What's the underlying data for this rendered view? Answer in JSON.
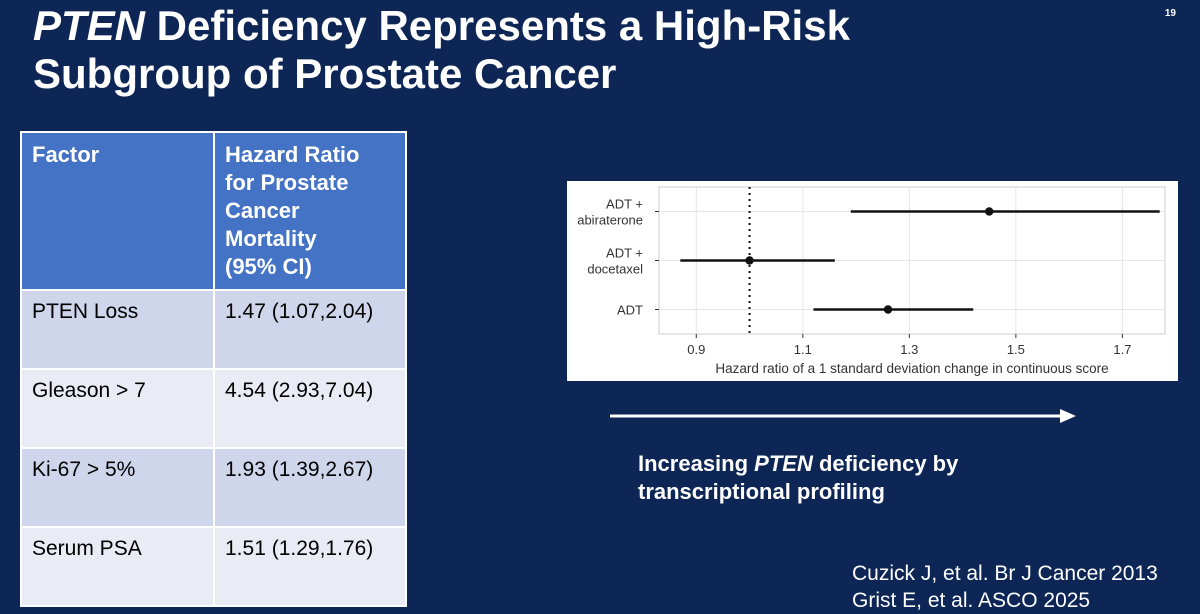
{
  "slide_number": "19",
  "title": {
    "italic": "PTEN",
    "line1_rest": " Deficiency Represents a High-Risk",
    "line2": "Subgroup of Prostate Cancer"
  },
  "table": {
    "headers": [
      "Factor",
      "Hazard Ratio for Prostate Cancer Mortality (95% CI)"
    ],
    "header_lines": [
      "Hazard Ratio",
      "for Prostate",
      "Cancer",
      "Mortality",
      "(95% CI)"
    ],
    "rows": [
      {
        "factor": "PTEN Loss",
        "hr": "1.47 (1.07,2.04)"
      },
      {
        "factor": "Gleason > 7",
        "hr": "4.54 (2.93,7.04)"
      },
      {
        "factor": "Ki-67 > 5%",
        "hr": "1.93 (1.39,2.67)"
      },
      {
        "factor": "Serum PSA",
        "hr": "1.51 (1.29,1.76)"
      }
    ],
    "colors": {
      "header_bg": "#4472c4",
      "row_odd": "#cfd5ea",
      "row_even": "#e9ebf5"
    }
  },
  "chart_data": {
    "type": "scatter",
    "subtype": "forest-plot",
    "xlabel": "Hazard ratio of a 1 standard deviation change in continuous score",
    "xlim": [
      0.83,
      1.78
    ],
    "xticks": [
      0.9,
      1.1,
      1.3,
      1.5,
      1.7
    ],
    "xtick_labels": [
      "0.9",
      "1.1",
      "1.3",
      "1.5",
      "1.7"
    ],
    "reference_line": 1.0,
    "grid": true,
    "categories": [
      {
        "label_lines": [
          "ADT +",
          "abiraterone"
        ],
        "estimate": 1.45,
        "lower": 1.19,
        "upper": 1.77
      },
      {
        "label_lines": [
          "ADT +",
          "docetaxel"
        ],
        "estimate": 1.0,
        "lower": 0.87,
        "upper": 1.16
      },
      {
        "label_lines": [
          "ADT"
        ],
        "estimate": 1.26,
        "lower": 1.12,
        "upper": 1.42
      }
    ]
  },
  "trend": {
    "caption_italic": "PTEN",
    "caption_line1_pre": "Increasing ",
    "caption_line1_post": " deficiency by",
    "caption_line2": "transcriptional profiling"
  },
  "citations": [
    "Cuzick J, et al. Br J Cancer 2013",
    "Grist E, et al. ASCO 2025"
  ],
  "colors": {
    "background": "#0d2656",
    "text": "#ffffff"
  }
}
